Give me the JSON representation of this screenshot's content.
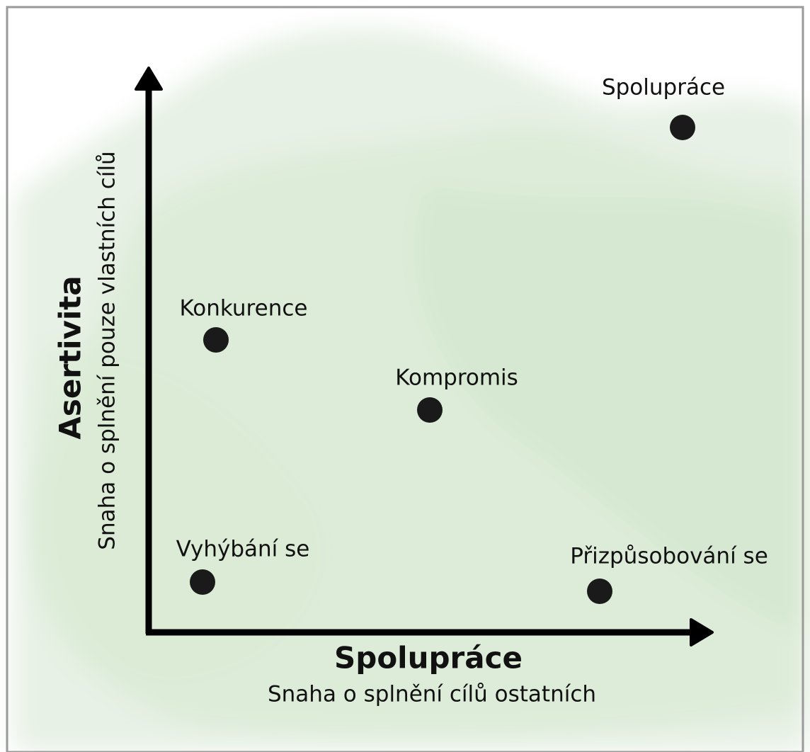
{
  "axes": {
    "x": {
      "title": "Spolupráce",
      "subtitle": "Snaha o splnění cílů ostatních"
    },
    "y": {
      "title": "Asertivita",
      "subtitle": "Snaha o splnění pouze vlastních cílů"
    }
  },
  "nodes": [
    {
      "label": "Spolupráce"
    },
    {
      "label": "Konkurence"
    },
    {
      "label": "Kompromis"
    },
    {
      "label": "Vyhýbání se"
    },
    {
      "label": "Přizpůsobování se"
    }
  ]
}
